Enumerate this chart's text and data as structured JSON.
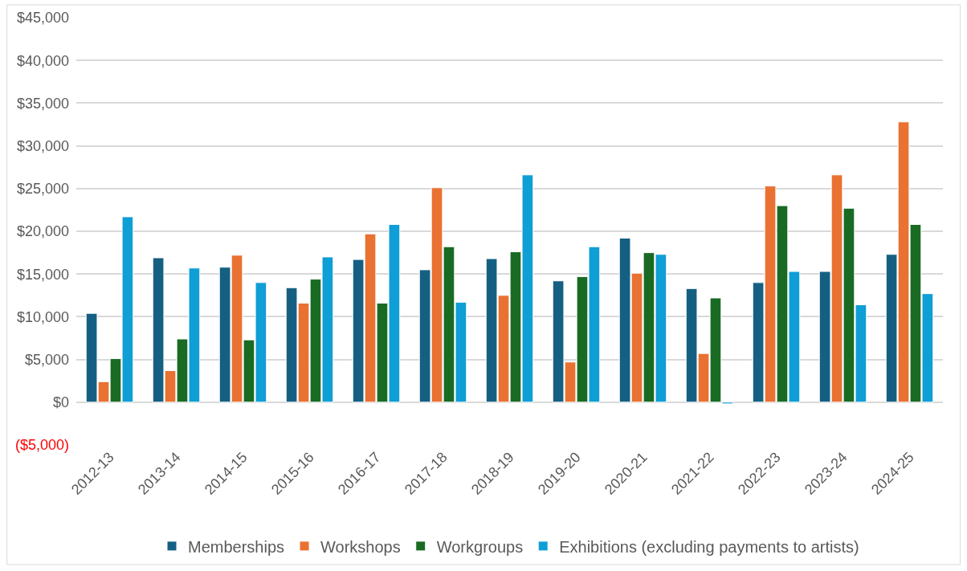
{
  "chart_data": {
    "type": "bar",
    "categories": [
      "2012-13",
      "2013-14",
      "2014-15",
      "2015-16",
      "2016-17",
      "2017-18",
      "2018-19",
      "2019-20",
      "2020-21",
      "2021-22",
      "2022-23",
      "2023-24",
      "2024-25"
    ],
    "series": [
      {
        "name": "Memberships",
        "color": "#156082",
        "values": [
          10400,
          16900,
          15800,
          13400,
          16700,
          15500,
          16800,
          14200,
          19200,
          13300,
          14000,
          15300,
          17300
        ]
      },
      {
        "name": "Workshops",
        "color": "#e97132",
        "values": [
          2400,
          3700,
          17200,
          11600,
          19700,
          25100,
          12500,
          4700,
          15100,
          5700,
          25300,
          26600,
          32800
        ]
      },
      {
        "name": "Workgroups",
        "color": "#196b24",
        "values": [
          5100,
          7400,
          7300,
          14400,
          11600,
          18200,
          17600,
          14700,
          17500,
          12200,
          23000,
          22700,
          20800
        ]
      },
      {
        "name": "Exhibitions (excluding payments to artists)",
        "color": "#0f9ed5",
        "values": [
          21700,
          15700,
          14000,
          17000,
          20800,
          11700,
          26600,
          18200,
          17300,
          -200,
          15300,
          11400,
          12700
        ]
      }
    ],
    "ylim": [
      -5000,
      45000
    ],
    "yticks": [
      {
        "value": -5000,
        "label": "($5,000)"
      },
      {
        "value": 0,
        "label": "$0"
      },
      {
        "value": 5000,
        "label": "$5,000"
      },
      {
        "value": 10000,
        "label": "$10,000"
      },
      {
        "value": 15000,
        "label": "$15,000"
      },
      {
        "value": 20000,
        "label": "$20,000"
      },
      {
        "value": 25000,
        "label": "$25,000"
      },
      {
        "value": 30000,
        "label": "$30,000"
      },
      {
        "value": 35000,
        "label": "$35,000"
      },
      {
        "value": 40000,
        "label": "$40,000"
      },
      {
        "value": 45000,
        "label": "$45,000"
      }
    ],
    "grid": "y",
    "legend": "bottom"
  }
}
